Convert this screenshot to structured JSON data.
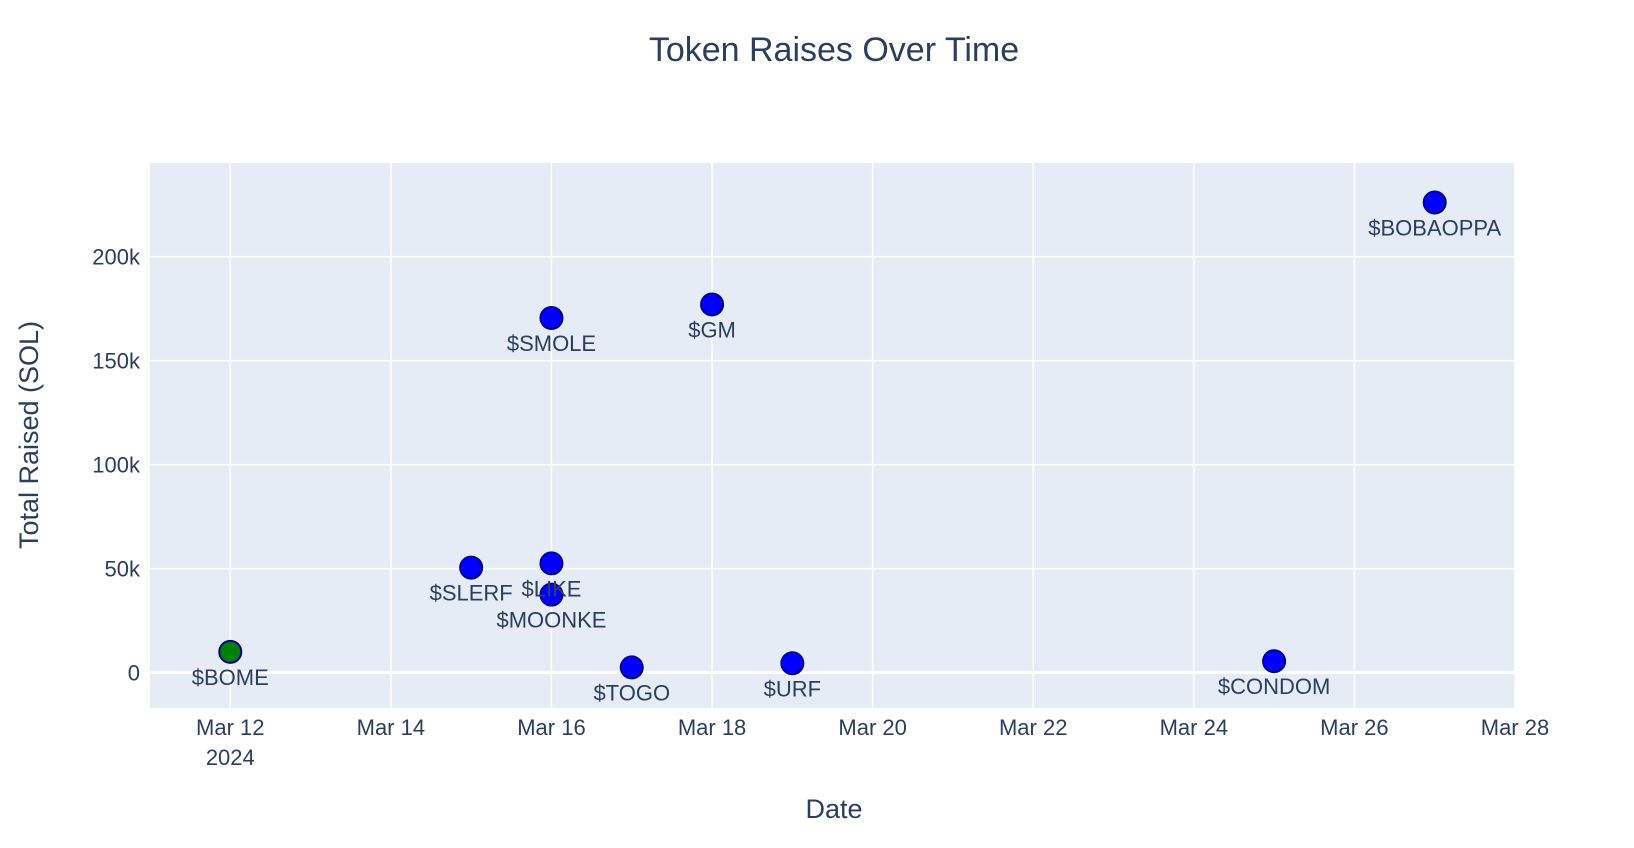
{
  "chart_data": {
    "type": "scatter",
    "title": "Token Raises Over Time",
    "xlabel": "Date",
    "ylabel": "Total Raised (SOL)",
    "x_axis": {
      "type": "date",
      "range": [
        "2024-03-11",
        "2024-03-28"
      ],
      "tick_dates": [
        "2024-03-12",
        "2024-03-14",
        "2024-03-16",
        "2024-03-18",
        "2024-03-20",
        "2024-03-22",
        "2024-03-24",
        "2024-03-26",
        "2024-03-28"
      ],
      "tick_labels": [
        "Mar 12",
        "Mar 14",
        "Mar 16",
        "Mar 18",
        "Mar 20",
        "Mar 22",
        "Mar 24",
        "Mar 26",
        "Mar 28"
      ],
      "year_label": "2024"
    },
    "y_axis": {
      "range": [
        -17000,
        245000
      ],
      "tick_values": [
        0,
        50000,
        100000,
        150000,
        200000
      ],
      "tick_labels": [
        "0",
        "50k",
        "100k",
        "150k",
        "200k"
      ]
    },
    "grid": true,
    "plot_background": "#e5ecf6",
    "marker_outline": "#00008b",
    "points": [
      {
        "label": "$BOME",
        "date": "2024-03-12",
        "y": 10000,
        "color": "#008000"
      },
      {
        "label": "$SLERF",
        "date": "2024-03-15",
        "y": 50500,
        "color": "#0000ff"
      },
      {
        "label": "$LIKE",
        "date": "2024-03-16",
        "y": 52500,
        "color": "#0000ff"
      },
      {
        "label": "$MOONKE",
        "date": "2024-03-16",
        "y": 37500,
        "color": "#0000ff"
      },
      {
        "label": "$SMOLE",
        "date": "2024-03-16",
        "y": 170500,
        "color": "#0000ff"
      },
      {
        "label": "$TOGO",
        "date": "2024-03-17",
        "y": 2500,
        "color": "#0000ff"
      },
      {
        "label": "$GM",
        "date": "2024-03-18",
        "y": 177000,
        "color": "#0000ff"
      },
      {
        "label": "$URF",
        "date": "2024-03-19",
        "y": 4500,
        "color": "#0000ff"
      },
      {
        "label": "$CONDOM",
        "date": "2024-03-25",
        "y": 5500,
        "color": "#0000ff"
      },
      {
        "label": "$BOBAOPPA",
        "date": "2024-03-27",
        "y": 226000,
        "color": "#0000ff"
      }
    ]
  }
}
